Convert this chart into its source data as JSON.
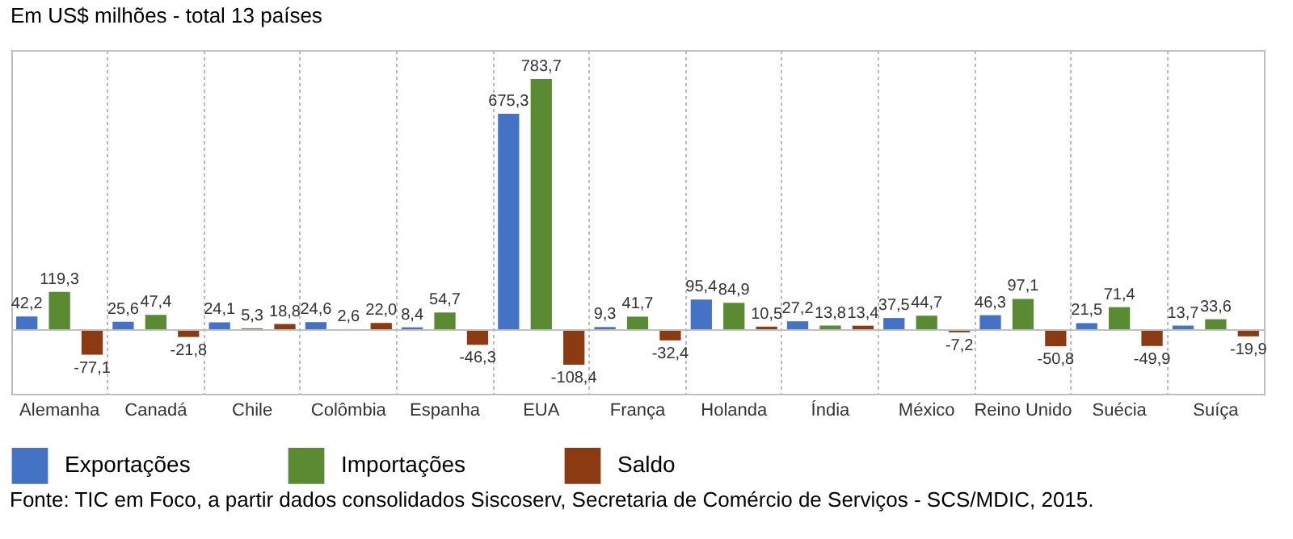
{
  "chart_data": {
    "type": "bar",
    "title": "Em US$ milhões - total 13 países",
    "categories": [
      "Alemanha",
      "Canadá",
      "Chile",
      "Colômbia",
      "Espanha",
      "EUA",
      "França",
      "Holanda",
      "Índia",
      "México",
      "Reino Unido",
      "Suécia",
      "Suíça"
    ],
    "series": [
      {
        "name": "Exportações",
        "color": "#4472c4",
        "values": [
          42.2,
          25.6,
          24.1,
          24.6,
          8.4,
          675.3,
          9.3,
          95.4,
          27.2,
          37.5,
          46.3,
          21.5,
          13.7
        ],
        "value_labels": [
          "42,2",
          "25,6",
          "24,1",
          "24,6",
          "8,4",
          "675,3",
          "9,3",
          "95,4",
          "27,2",
          "37,5",
          "46,3",
          "21,5",
          "13,7"
        ]
      },
      {
        "name": "Importações",
        "color": "#5a8a32",
        "values": [
          119.3,
          47.4,
          5.3,
          2.6,
          54.7,
          783.7,
          41.7,
          84.9,
          13.8,
          44.7,
          97.1,
          71.4,
          33.6
        ],
        "value_labels": [
          "119,3",
          "47,4",
          "5,3",
          "2,6",
          "54,7",
          "783,7",
          "41,7",
          "84,9",
          "13,8",
          "44,7",
          "97,1",
          "71,4",
          "33,6"
        ]
      },
      {
        "name": "Saldo",
        "color": "#8b3a12",
        "values": [
          -77.1,
          -21.8,
          18.8,
          22.0,
          -46.3,
          -108.4,
          -32.4,
          10.5,
          13.4,
          -7.2,
          -50.8,
          -49.9,
          -19.9
        ],
        "value_labels": [
          "-77,1",
          "-21,8",
          "18,8",
          "22,0",
          "-46,3",
          "-108,4",
          "-32,4",
          "10,5",
          "13,4",
          "-7,2",
          "-50,8",
          "-49,9",
          "-19,9"
        ]
      }
    ],
    "grid": "x",
    "legend": "bottom left",
    "annotations": [
      "Fonte: TIC em Foco, a partir dados consolidados Siscoserv, Secretaria de Comércio de Serviços - SCS/MDIC, 2015."
    ]
  }
}
